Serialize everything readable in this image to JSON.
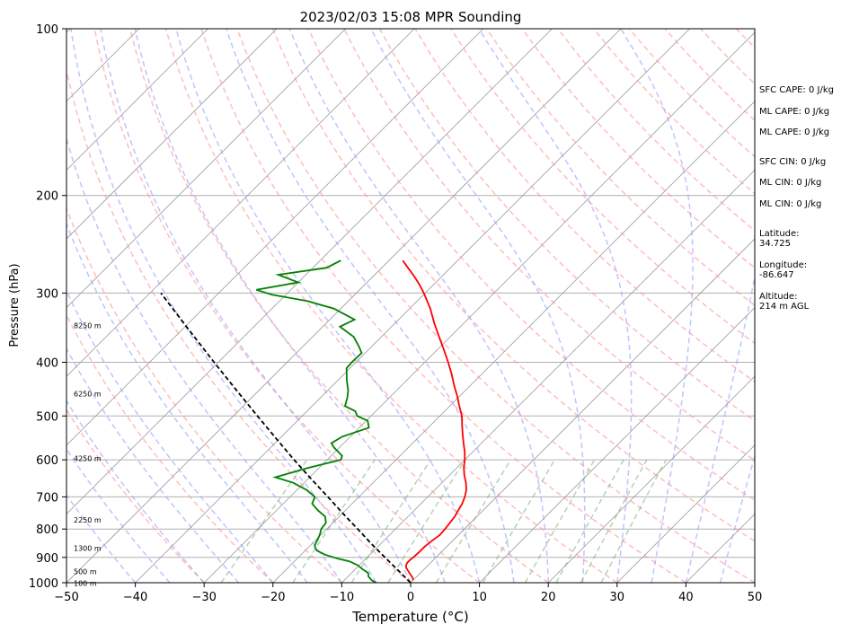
{
  "chart_data": {
    "type": "line",
    "title": "2023/02/03 15:08 MPR Sounding",
    "xlabel": "Temperature (°C)",
    "ylabel": "Pressure (hPa)",
    "xlim": [
      -50,
      50
    ],
    "ylim": [
      1000,
      100
    ],
    "yscale": "log",
    "skew": true,
    "xticks": [
      -50,
      -40,
      -30,
      -20,
      -10,
      0,
      10,
      20,
      30,
      40,
      50
    ],
    "yticks": [
      1000,
      900,
      800,
      700,
      600,
      500,
      400,
      300,
      200,
      100
    ],
    "grid": "horizontal at pressure ticks",
    "series": [
      {
        "role": "temperature",
        "color": "#ff0000",
        "points": [
          [
            990,
            0.0
          ],
          [
            980,
            -0.4
          ],
          [
            970,
            -1.0
          ],
          [
            960,
            -1.6
          ],
          [
            950,
            -2.2
          ],
          [
            940,
            -2.8
          ],
          [
            930,
            -3.2
          ],
          [
            920,
            -3.4
          ],
          [
            910,
            -3.4
          ],
          [
            900,
            -3.3
          ],
          [
            880,
            -3.2
          ],
          [
            860,
            -3.2
          ],
          [
            840,
            -3.0
          ],
          [
            820,
            -2.7
          ],
          [
            800,
            -2.8
          ],
          [
            780,
            -3.0
          ],
          [
            760,
            -3.2
          ],
          [
            740,
            -3.6
          ],
          [
            720,
            -4.0
          ],
          [
            700,
            -4.6
          ],
          [
            680,
            -5.4
          ],
          [
            660,
            -6.5
          ],
          [
            640,
            -7.8
          ],
          [
            620,
            -9.0
          ],
          [
            600,
            -10.0
          ],
          [
            580,
            -11.2
          ],
          [
            560,
            -12.6
          ],
          [
            540,
            -14.0
          ],
          [
            520,
            -15.4
          ],
          [
            500,
            -16.8
          ],
          [
            480,
            -18.6
          ],
          [
            460,
            -20.4
          ],
          [
            440,
            -22.4
          ],
          [
            420,
            -24.4
          ],
          [
            400,
            -26.6
          ],
          [
            380,
            -29.0
          ],
          [
            360,
            -31.6
          ],
          [
            340,
            -34.3
          ],
          [
            320,
            -37.0
          ],
          [
            300,
            -40.2
          ],
          [
            290,
            -42.0
          ],
          [
            280,
            -44.0
          ],
          [
            270,
            -46.2
          ],
          [
            262,
            -48.0
          ]
        ]
      },
      {
        "role": "dewpoint",
        "color": "#008000",
        "points": [
          [
            1000,
            -5.0
          ],
          [
            990,
            -6.0
          ],
          [
            975,
            -7.0
          ],
          [
            960,
            -7.6
          ],
          [
            945,
            -9.0
          ],
          [
            930,
            -10.2
          ],
          [
            915,
            -12.0
          ],
          [
            905,
            -14.0
          ],
          [
            890,
            -16.5
          ],
          [
            875,
            -18.3
          ],
          [
            860,
            -19.2
          ],
          [
            850,
            -19.5
          ],
          [
            835,
            -19.8
          ],
          [
            815,
            -20.3
          ],
          [
            800,
            -20.8
          ],
          [
            780,
            -21.0
          ],
          [
            760,
            -22.0
          ],
          [
            740,
            -24.0
          ],
          [
            720,
            -25.8
          ],
          [
            700,
            -26.4
          ],
          [
            680,
            -28.6
          ],
          [
            660,
            -31.6
          ],
          [
            645,
            -35.0
          ],
          [
            620,
            -31.5
          ],
          [
            600,
            -28.0
          ],
          [
            590,
            -28.4
          ],
          [
            570,
            -30.8
          ],
          [
            560,
            -31.8
          ],
          [
            545,
            -31.2
          ],
          [
            525,
            -28.6
          ],
          [
            510,
            -29.8
          ],
          [
            500,
            -32.0
          ],
          [
            490,
            -33.0
          ],
          [
            480,
            -35.2
          ],
          [
            465,
            -36.0
          ],
          [
            450,
            -37.0
          ],
          [
            430,
            -38.8
          ],
          [
            410,
            -40.5
          ],
          [
            400,
            -40.6
          ],
          [
            385,
            -40.5
          ],
          [
            375,
            -41.8
          ],
          [
            360,
            -44.0
          ],
          [
            345,
            -47.5
          ],
          [
            335,
            -46.4
          ],
          [
            320,
            -51.0
          ],
          [
            310,
            -56.0
          ],
          [
            302,
            -62.0
          ],
          [
            296,
            -65.0
          ],
          [
            287,
            -60.0
          ],
          [
            278,
            -64.0
          ],
          [
            270,
            -58.0
          ],
          [
            262,
            -57.0
          ]
        ]
      },
      {
        "role": "parcel",
        "color": "#000000",
        "style": "dashed",
        "points": [
          [
            1000,
            0.0
          ],
          [
            950,
            -3.6
          ],
          [
            900,
            -7.4
          ],
          [
            850,
            -11.4
          ],
          [
            800,
            -15.5
          ],
          [
            750,
            -19.9
          ],
          [
            700,
            -24.5
          ],
          [
            650,
            -29.5
          ],
          [
            600,
            -34.8
          ],
          [
            550,
            -40.4
          ],
          [
            500,
            -46.5
          ],
          [
            450,
            -53.2
          ],
          [
            400,
            -60.6
          ],
          [
            350,
            -68.9
          ],
          [
            300,
            -78.4
          ]
        ]
      }
    ],
    "height_labels": [
      "100 m",
      "500 m",
      "1300 m",
      "2250 m",
      "4250 m",
      "6250 m",
      "8250 m"
    ]
  },
  "side_panel": {
    "sfc_cape": "SFC CAPE: 0 J/kg",
    "ml_cape": "ML CAPE: 0 J/kg",
    "mu_cape": "ML CAPE: 0 J/kg",
    "sfc_cin": "SFC CIN: 0 J/kg",
    "ml_cin": "ML CIN: 0 J/kg",
    "mu_cin": "ML CIN: 0 J/kg",
    "latitude": "Latitude:\n34.725",
    "longitude": "Longitude:\n-86.647",
    "altitude": "Altitude:\n214 m AGL"
  },
  "colors": {
    "temperature": "#ff0000",
    "dewpoint": "#008000",
    "parcel": "#000000",
    "dry_adiabat": "#ff9999",
    "moist_adiabat": "#9999ff",
    "mixing_ratio": "#66aa66",
    "isotherm": "#999999"
  }
}
